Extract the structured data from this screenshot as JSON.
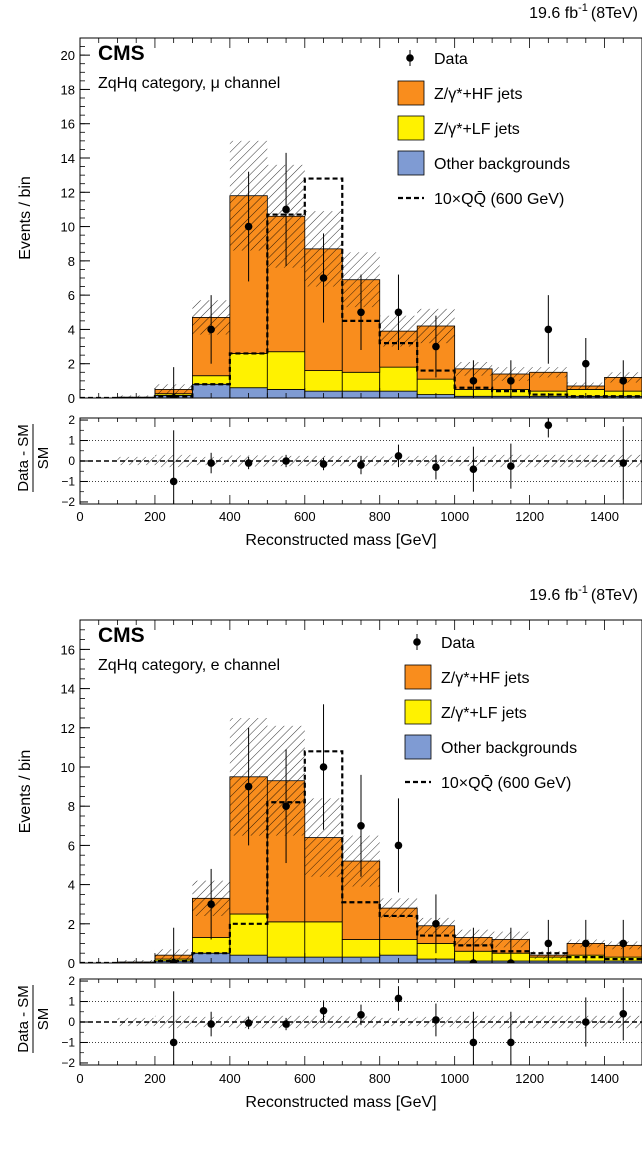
{
  "colors": {
    "hf": "#f98d1d",
    "lf": "#fff200",
    "other": "#7f9bd3",
    "signal": "#000000",
    "data": "#000000"
  },
  "chart_data": [
    {
      "type": "bar",
      "stacked": true,
      "experiment": "CMS",
      "category": "ZqHq category, μ channel",
      "lumi_label": "19.6 fb",
      "lumi_sup": "-1",
      "energy_label": "(8TeV)",
      "ylabel": "Events / bin",
      "ylim": [
        0,
        21
      ],
      "yticks": [
        0,
        2,
        4,
        6,
        8,
        10,
        12,
        14,
        16,
        18,
        20
      ],
      "x_bin_edges": [
        0,
        100,
        200,
        300,
        400,
        500,
        600,
        700,
        800,
        900,
        1000,
        1100,
        1200,
        1300,
        1400,
        1500
      ],
      "legend": [
        {
          "label": "Data",
          "kind": "data"
        },
        {
          "label": "Z/γ*+HF jets",
          "kind": "hf"
        },
        {
          "label": "Z/γ*+LF jets",
          "kind": "lf"
        },
        {
          "label": "Other backgrounds",
          "kind": "other"
        },
        {
          "label": "10×QQ̄ (600 GeV)",
          "kind": "signal"
        }
      ],
      "series": [
        {
          "name": "Other backgrounds",
          "values": [
            0,
            0,
            0.15,
            0.8,
            0.6,
            0.5,
            0.4,
            0.4,
            0.4,
            0.2,
            0.1,
            0.1,
            0.1,
            0.1,
            0.1
          ]
        },
        {
          "name": "Z/γ*+LF jets",
          "values": [
            0,
            0,
            0.1,
            0.5,
            2.0,
            2.2,
            1.2,
            1.1,
            1.4,
            0.9,
            0.4,
            0.4,
            0.3,
            0.4,
            0.3
          ]
        },
        {
          "name": "Z/γ*+HF jets",
          "values": [
            0,
            0.05,
            0.25,
            3.4,
            9.2,
            7.9,
            7.1,
            5.4,
            2.1,
            3.1,
            1.2,
            0.9,
            1.1,
            0.2,
            0.8
          ]
        }
      ],
      "total_uncertainty": [
        0,
        0.1,
        0.3,
        1.0,
        3.2,
        3.0,
        2.2,
        1.6,
        0.9,
        1.0,
        0.4,
        0.4,
        0.3,
        0.2,
        0.3
      ],
      "signal": {
        "name": "10×QQ̄ (600 GeV)",
        "values": [
          0,
          0,
          0.1,
          0.8,
          2.6,
          10.7,
          12.8,
          4.5,
          3.2,
          1.6,
          0.6,
          0.4,
          0.2,
          0.1,
          0.1
        ]
      },
      "data": {
        "x": [
          250,
          350,
          450,
          550,
          650,
          750,
          850,
          950,
          1050,
          1150,
          1250,
          1350,
          1450
        ],
        "y": [
          0,
          4,
          10,
          11,
          7,
          5,
          5,
          3,
          1,
          1,
          4,
          2,
          1
        ],
        "err": [
          1.8,
          2.0,
          3.2,
          3.3,
          2.6,
          2.2,
          2.2,
          1.8,
          1.2,
          1.2,
          2.0,
          1.5,
          1.2
        ]
      },
      "ratio": {
        "ylabel_top": "Data - SM",
        "ylabel_bottom": "SM",
        "ylim": [
          -2.1,
          2.1
        ],
        "yticks": [
          -2,
          -1,
          0,
          1,
          2
        ],
        "points": {
          "x": [
            250,
            350,
            450,
            550,
            650,
            750,
            850,
            950,
            1050,
            1150,
            1250,
            1450
          ],
          "y": [
            -1.0,
            -0.1,
            -0.1,
            0.0,
            -0.15,
            -0.2,
            0.25,
            -0.3,
            -0.4,
            -0.25,
            1.75,
            -0.1
          ],
          "err": [
            2.5,
            0.5,
            0.3,
            0.3,
            0.3,
            0.45,
            0.55,
            0.6,
            1.1,
            1.1,
            0.6,
            1.8
          ]
        },
        "band": [
          0,
          0.2,
          0.3,
          0.2,
          0.27,
          0.25,
          0.25,
          0.25,
          0.22,
          0.25,
          0.25,
          0.3,
          0.3,
          0.3,
          0.3
        ]
      },
      "xlabel": "Reconstructed mass [GeV]",
      "xlim": [
        0,
        1500
      ],
      "xticks": [
        0,
        200,
        400,
        600,
        800,
        1000,
        1200,
        1400
      ]
    },
    {
      "type": "bar",
      "stacked": true,
      "experiment": "CMS",
      "category": "ZqHq category, e channel",
      "lumi_label": "19.6 fb",
      "lumi_sup": "-1",
      "energy_label": "(8TeV)",
      "ylabel": "Events / bin",
      "ylim": [
        0,
        17.5
      ],
      "yticks": [
        0,
        2,
        4,
        6,
        8,
        10,
        12,
        14,
        16
      ],
      "x_bin_edges": [
        0,
        100,
        200,
        300,
        400,
        500,
        600,
        700,
        800,
        900,
        1000,
        1100,
        1200,
        1300,
        1400,
        1500
      ],
      "legend": [
        {
          "label": "Data",
          "kind": "data"
        },
        {
          "label": "Z/γ*+HF jets",
          "kind": "hf"
        },
        {
          "label": "Z/γ*+LF jets",
          "kind": "lf"
        },
        {
          "label": "Other backgrounds",
          "kind": "other"
        },
        {
          "label": "10×QQ̄ (600 GeV)",
          "kind": "signal"
        }
      ],
      "series": [
        {
          "name": "Other backgrounds",
          "values": [
            0,
            0,
            0.1,
            0.5,
            0.4,
            0.3,
            0.3,
            0.3,
            0.4,
            0.2,
            0.1,
            0.1,
            0.1,
            0.1,
            0.1
          ]
        },
        {
          "name": "Z/γ*+LF jets",
          "values": [
            0,
            0,
            0.1,
            0.8,
            2.1,
            1.8,
            1.8,
            0.9,
            0.8,
            0.8,
            0.5,
            0.4,
            0.2,
            0.3,
            0.2
          ]
        },
        {
          "name": "Z/γ*+HF jets",
          "values": [
            0,
            0.05,
            0.2,
            2.0,
            7.0,
            7.2,
            4.3,
            4.0,
            1.6,
            0.9,
            0.7,
            0.7,
            0.1,
            0.6,
            0.6
          ]
        }
      ],
      "total_uncertainty": [
        0,
        0.1,
        0.3,
        0.9,
        3.0,
        2.8,
        2.0,
        1.3,
        0.5,
        0.4,
        0.4,
        0.4,
        0.2,
        0.2,
        0.2
      ],
      "signal": {
        "name": "10×QQ̄ (600 GeV)",
        "values": [
          0,
          0,
          0.1,
          0.5,
          2.0,
          8.2,
          10.8,
          3.1,
          2.4,
          1.4,
          0.9,
          0.6,
          0.5,
          0.3,
          0.2
        ]
      },
      "data": {
        "x": [
          250,
          350,
          450,
          550,
          650,
          750,
          850,
          950,
          1050,
          1150,
          1250,
          1350,
          1450
        ],
        "y": [
          0,
          3,
          9,
          8,
          10,
          7,
          6,
          2,
          0,
          0,
          1,
          1,
          1
        ],
        "err": [
          1.8,
          1.8,
          3.0,
          2.9,
          3.2,
          2.6,
          2.4,
          1.5,
          1.8,
          1.8,
          1.2,
          1.2,
          1.2
        ]
      },
      "ratio": {
        "ylabel_top": "Data - SM",
        "ylabel_bottom": "SM",
        "ylim": [
          -2.1,
          2.1
        ],
        "yticks": [
          -2,
          -1,
          0,
          1,
          2
        ],
        "points": {
          "x": [
            250,
            350,
            450,
            550,
            650,
            750,
            850,
            950,
            1050,
            1150,
            1350,
            1450
          ],
          "y": [
            -1.0,
            -0.1,
            -0.05,
            -0.1,
            0.55,
            0.35,
            1.15,
            0.1,
            -1.0,
            -1.0,
            0.0,
            0.4
          ],
          "err": [
            2.5,
            0.6,
            0.3,
            0.3,
            0.5,
            0.5,
            0.6,
            0.8,
            1.5,
            1.5,
            1.2,
            1.3
          ]
        },
        "band": [
          0,
          0.2,
          0.3,
          0.25,
          0.3,
          0.3,
          0.3,
          0.27,
          0.2,
          0.25,
          0.3,
          0.3,
          0.3,
          0.3,
          0.3
        ]
      },
      "xlabel": "Reconstructed mass [GeV]",
      "xlim": [
        0,
        1500
      ],
      "xticks": [
        0,
        200,
        400,
        600,
        800,
        1000,
        1200,
        1400
      ]
    }
  ]
}
